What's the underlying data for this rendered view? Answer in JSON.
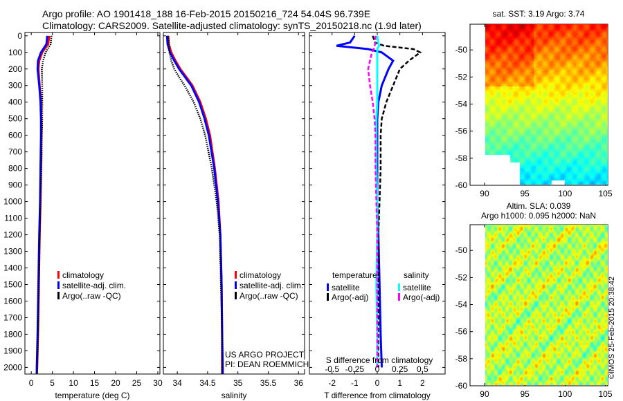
{
  "title_line1": "Argo profile: AO 1901418_188 16-Feb-2015 20150216_724 54.04S 96.739E",
  "title_line2": "Climatology: CARS2009. Satellite-adjusted climatology: synTS_20150218.nc (1.9d later)",
  "credit_text": "US ARGO PROJECT",
  "pi_text": "PI: DEAN ROEMMICH",
  "footer_stamp": "©IMOS 25-Feb-2015 20:38:42",
  "colors": {
    "climatology": "#ff0000",
    "satellite": "#0000ff",
    "argo": "#000000",
    "sal_satellite": "#00ffff",
    "sal_argo": "#ff00ff"
  },
  "chart_data": [
    {
      "type": "line",
      "name": "temperature-profile",
      "xlabel": "temperature (deg C)",
      "ylabel": "depth",
      "xlim": [
        -1.5,
        30.5
      ],
      "ylim": [
        2040,
        -20
      ],
      "xticks": [
        0,
        5,
        10,
        15,
        20,
        25,
        30
      ],
      "yticks": [
        0,
        100,
        200,
        300,
        400,
        500,
        600,
        700,
        800,
        900,
        1000,
        1100,
        1200,
        1300,
        1400,
        1500,
        1600,
        1700,
        1800,
        1900,
        2000
      ],
      "legend": [
        "climatology",
        "satellite-adj. clim.",
        "Argo(..raw -QC)"
      ],
      "depth": [
        0,
        50,
        100,
        150,
        200,
        300,
        400,
        500,
        600,
        800,
        1000,
        1200,
        1500,
        1800,
        2000,
        2040
      ],
      "series": [
        {
          "name": "climatology",
          "style": "solid",
          "color": "#ff0000",
          "values": [
            4.3,
            4.0,
            2.6,
            1.9,
            1.7,
            2.0,
            2.3,
            2.4,
            2.4,
            2.3,
            2.2,
            2.0,
            1.8,
            1.6,
            1.4,
            1.3
          ]
        },
        {
          "name": "satellite-adj. clim.",
          "style": "solid",
          "color": "#0000ff",
          "values": [
            3.8,
            3.6,
            2.3,
            1.6,
            1.5,
            1.9,
            2.2,
            2.3,
            2.3,
            2.2,
            2.1,
            1.9,
            1.7,
            1.5,
            1.3,
            1.3
          ]
        },
        {
          "name": "Argo(..raw -QC)",
          "style": "dotted",
          "color": "#000000",
          "values": [
            4.8,
            4.6,
            3.4,
            2.8,
            2.5,
            2.6,
            2.6,
            2.6,
            2.5,
            2.4,
            2.2,
            2.0,
            1.8,
            1.6,
            1.4,
            1.4
          ]
        }
      ]
    },
    {
      "type": "line",
      "name": "salinity-profile",
      "xlabel": "salinity",
      "xlim": [
        33.77,
        36.1
      ],
      "ylim": [
        2040,
        -20
      ],
      "xticks": [
        34,
        34.5,
        35,
        35.5,
        36
      ],
      "xticklabels": [
        "34",
        "34.5",
        "35",
        "35.5",
        "36"
      ],
      "legend": [
        "climatology",
        "satellite-adj. clim.",
        "Argo(..raw -QC)"
      ],
      "depth": [
        0,
        50,
        100,
        150,
        200,
        250,
        300,
        400,
        500,
        600,
        800,
        1000,
        1200,
        1500,
        1800,
        2000,
        2040
      ],
      "series": [
        {
          "name": "climatology",
          "style": "solid",
          "color": "#ff0000",
          "values": [
            33.85,
            33.86,
            33.9,
            33.97,
            34.05,
            34.15,
            34.25,
            34.38,
            34.47,
            34.54,
            34.62,
            34.68,
            34.71,
            34.73,
            34.74,
            34.74,
            34.74
          ]
        },
        {
          "name": "satellite-adj. clim.",
          "style": "solid",
          "color": "#0000ff",
          "values": [
            33.83,
            33.84,
            33.88,
            33.95,
            34.03,
            34.13,
            34.23,
            34.36,
            34.45,
            34.52,
            34.61,
            34.67,
            34.71,
            34.73,
            34.74,
            34.75,
            34.75
          ]
        },
        {
          "name": "Argo(..raw -QC)",
          "style": "dotted",
          "color": "#000000",
          "values": [
            33.85,
            33.86,
            33.87,
            33.9,
            33.95,
            34.03,
            34.12,
            34.27,
            34.38,
            34.46,
            34.57,
            34.65,
            34.7,
            34.72,
            34.74,
            34.74,
            34.74
          ]
        }
      ]
    },
    {
      "type": "line",
      "name": "difference-profile",
      "xlabel": "T difference from climatology",
      "x2label": "S difference from climatology",
      "xlim": [
        -3,
        3
      ],
      "x2lim": [
        -0.75,
        0.75
      ],
      "ylim": [
        2040,
        -20
      ],
      "xticks": [
        -2,
        -1,
        0,
        1,
        2
      ],
      "x2ticks": [
        -0.5,
        -0.25,
        0,
        0.25,
        0.5
      ],
      "x2ticklabels": [
        "-0.5",
        "-0.25",
        "0",
        "0.25",
        "0.5"
      ],
      "legend_temperature_title": "temperature",
      "legend_salinity_title": "salinity",
      "legend": [
        "satellite",
        "Argo(-adj)",
        "satellite",
        "Argo(-adj)"
      ],
      "depth": [
        0,
        40,
        60,
        80,
        100,
        150,
        200,
        300,
        400,
        500,
        600,
        800,
        1000,
        1200,
        1500,
        1800,
        2000
      ],
      "series": [
        {
          "name": "T satellite",
          "axis": "T",
          "style": "solid",
          "color": "#0000ff",
          "values": [
            -1.0,
            -1.2,
            -1.8,
            -0.4,
            0.2,
            0.7,
            0.5,
            0.2,
            0.05,
            0.0,
            0.0,
            0.0,
            0.0,
            0.05,
            0.1,
            0.15,
            0.2
          ]
        },
        {
          "name": "T Argo(-adj)",
          "axis": "T",
          "style": "dashed",
          "color": "#000000",
          "values": [
            -0.2,
            -0.1,
            0.3,
            1.6,
            1.9,
            1.4,
            1.0,
            0.7,
            0.4,
            0.2,
            0.15,
            0.15,
            0.1,
            0.05,
            0.05,
            0.05,
            0.05
          ]
        },
        {
          "name": "S satellite",
          "axis": "S",
          "style": "solid",
          "color": "#00ffff",
          "values": [
            0.0,
            0.01,
            0.02,
            0.0,
            0.0,
            0.0,
            0.0,
            0.0,
            0.0,
            -0.01,
            -0.01,
            -0.01,
            0.0,
            0.0,
            -0.01,
            0.0,
            0.0
          ]
        },
        {
          "name": "S Argo(-adj)",
          "axis": "S",
          "style": "dashed",
          "color": "#ff00ff",
          "values": [
            -0.02,
            -0.02,
            -0.03,
            -0.04,
            -0.06,
            -0.08,
            -0.1,
            -0.08,
            -0.05,
            -0.03,
            -0.02,
            -0.02,
            -0.01,
            0.0,
            0.0,
            0.0,
            0.0
          ]
        }
      ]
    },
    {
      "type": "heatmap",
      "name": "sst-map",
      "title": "sat. SST: 3.19  Argo: 3.74",
      "xlim": [
        88.2,
        105.3
      ],
      "ylim": [
        -60,
        -48.1
      ],
      "xticks": [
        90,
        95,
        100,
        105
      ],
      "yticks": [
        -50,
        -52,
        -54,
        -56,
        -58,
        -60
      ]
    },
    {
      "type": "heatmap",
      "name": "sla-map",
      "title": "Altim. SLA: 0.039",
      "subtitle": "Argo h1000: 0.095 h2000: NaN",
      "xlim": [
        88.2,
        105.3
      ],
      "ylim": [
        -60,
        -48.1
      ],
      "xticks": [
        90,
        95,
        100,
        105
      ],
      "yticks": [
        -50,
        -52,
        -54,
        -56,
        -58,
        -60
      ]
    }
  ]
}
